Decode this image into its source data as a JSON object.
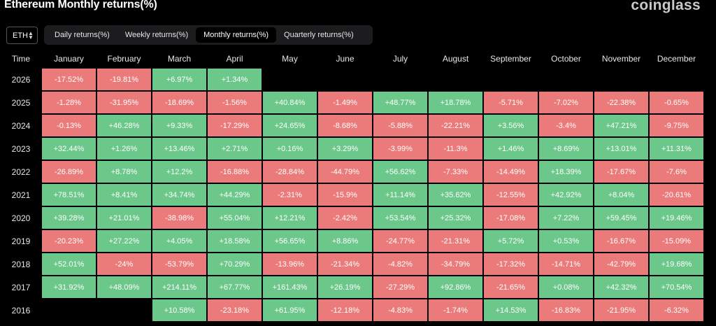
{
  "header": {
    "title": "Ethereum Monthly returns(%)",
    "brand": "coinglass"
  },
  "asset_selector": {
    "value": "ETH"
  },
  "tabs": [
    {
      "label": "Daily returns(%)",
      "active": false
    },
    {
      "label": "Weekly returns(%)",
      "active": false
    },
    {
      "label": "Monthly returns(%)",
      "active": true
    },
    {
      "label": "Quarterly returns(%)",
      "active": false
    }
  ],
  "table": {
    "time_header": "Time",
    "months": [
      "January",
      "February",
      "March",
      "April",
      "May",
      "June",
      "July",
      "August",
      "September",
      "October",
      "November",
      "December"
    ],
    "colors": {
      "positive": "#6cc78a",
      "negative": "#eb7b7b"
    },
    "rows": [
      {
        "year": "2026",
        "values": [
          "-17.52%",
          "-19.81%",
          "+6.97%",
          "+1.34%",
          "",
          "",
          "",
          "",
          "",
          "",
          "",
          ""
        ]
      },
      {
        "year": "2025",
        "values": [
          "-1.28%",
          "-31.95%",
          "-18.69%",
          "-1.56%",
          "+40.84%",
          "-1.49%",
          "+48.77%",
          "+18.78%",
          "-5.71%",
          "-7.02%",
          "-22.38%",
          "-0.65%"
        ]
      },
      {
        "year": "2024",
        "values": [
          "-0.13%",
          "+46.28%",
          "+9.33%",
          "-17.29%",
          "+24.65%",
          "-8.68%",
          "-5.88%",
          "-22.21%",
          "+3.56%",
          "-3.4%",
          "+47.21%",
          "-9.75%"
        ]
      },
      {
        "year": "2023",
        "values": [
          "+32.44%",
          "+1.26%",
          "+13.46%",
          "+2.71%",
          "+0.16%",
          "+3.29%",
          "-3.99%",
          "-11.3%",
          "+1.46%",
          "+8.69%",
          "+13.01%",
          "+11.31%"
        ]
      },
      {
        "year": "2022",
        "values": [
          "-26.89%",
          "+8.78%",
          "+12.2%",
          "-16.88%",
          "-28.84%",
          "-44.79%",
          "+56.62%",
          "-7.33%",
          "-14.49%",
          "+18.39%",
          "-17.67%",
          "-7.6%"
        ]
      },
      {
        "year": "2021",
        "values": [
          "+78.51%",
          "+8.41%",
          "+34.74%",
          "+44.29%",
          "-2.31%",
          "-15.9%",
          "+11.14%",
          "+35.62%",
          "-12.55%",
          "+42.92%",
          "+8.04%",
          "-20.61%"
        ]
      },
      {
        "year": "2020",
        "values": [
          "+39.28%",
          "+21.01%",
          "-38.98%",
          "+55.04%",
          "+12.21%",
          "-2.42%",
          "+53.54%",
          "+25.32%",
          "-17.08%",
          "+7.22%",
          "+59.45%",
          "+19.46%"
        ]
      },
      {
        "year": "2019",
        "values": [
          "-20.23%",
          "+27.22%",
          "+4.05%",
          "+18.58%",
          "+56.65%",
          "+8.86%",
          "-24.77%",
          "-21.31%",
          "+5.72%",
          "+0.53%",
          "-16.67%",
          "-15.09%"
        ]
      },
      {
        "year": "2018",
        "values": [
          "+52.01%",
          "-24%",
          "-53.79%",
          "+70.29%",
          "-13.96%",
          "-21.34%",
          "-4.82%",
          "-34.79%",
          "-17.32%",
          "-14.71%",
          "-42.79%",
          "+19.68%"
        ]
      },
      {
        "year": "2017",
        "values": [
          "+31.92%",
          "+48.09%",
          "+214.11%",
          "+67.77%",
          "+161.43%",
          "+26.19%",
          "-27.29%",
          "+92.86%",
          "-21.65%",
          "+0.08%",
          "+42.32%",
          "+70.54%"
        ]
      },
      {
        "year": "2016",
        "values": [
          "",
          "",
          "+10.58%",
          "-23.18%",
          "+61.95%",
          "-12.18%",
          "-4.83%",
          "-1.74%",
          "+14.53%",
          "-16.83%",
          "-21.95%",
          "-6.32%"
        ]
      }
    ]
  }
}
